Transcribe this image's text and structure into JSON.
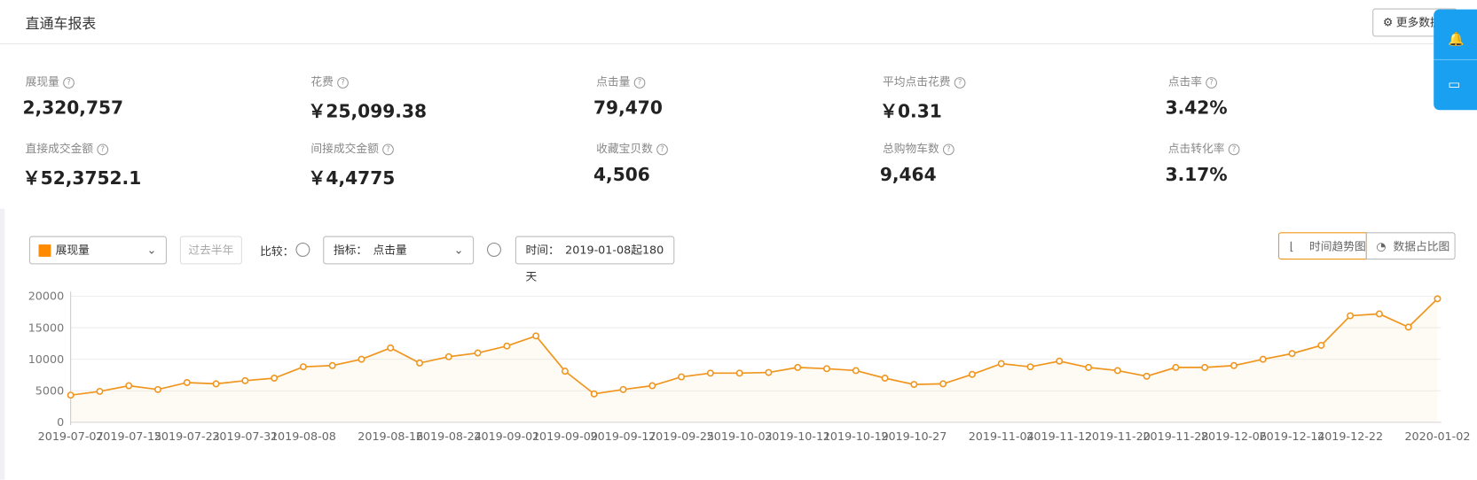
{
  "header": {
    "title": "直通车报表",
    "more_button": "更多数据"
  },
  "metrics": [
    {
      "label": "展现量",
      "value": "2,320,757"
    },
    {
      "label": "花费",
      "value": "￥25,099.38"
    },
    {
      "label": "点击量",
      "value": "79,470"
    },
    {
      "label": "平均点击花费",
      "value": "￥0.31"
    },
    {
      "label": "点击率",
      "value": "3.42%"
    },
    {
      "label": "直接成交金额",
      "value": "￥52,3752.1"
    },
    {
      "label": "间接成交金额",
      "value": "￥4,4775"
    },
    {
      "label": "收藏宝贝数",
      "value": "4,506"
    },
    {
      "label": "总购物车数",
      "value": "9,464"
    },
    {
      "label": "点击转化率",
      "value": "3.17%"
    }
  ],
  "controls": {
    "metric_select": "展现量",
    "period_button": "过去半年",
    "compare_label": "比较：",
    "indicator_label": "指标：",
    "indicator_value": "点击量",
    "time_label": "时间：",
    "time_value": "2019-01-08起180天",
    "tab_trend": "时间趋势图",
    "tab_share": "数据占比图"
  },
  "chart_data": {
    "type": "line",
    "color": "#f0961e",
    "categories": [
      "2019-07-07",
      null,
      "2019-07-15",
      null,
      "2019-07-23",
      null,
      "2019-07-31",
      null,
      "2019-08-08",
      null,
      null,
      "2019-08-16",
      null,
      "2019-08-24",
      null,
      "2019-09-01",
      null,
      "2019-09-09",
      null,
      "2019-09-17",
      null,
      "2019-09-25",
      null,
      "2019-10-03",
      null,
      "2019-10-11",
      null,
      "2019-10-19",
      null,
      "2019-10-27",
      null,
      null,
      "2019-11-04",
      null,
      "2019-11-12",
      null,
      "2019-11-20",
      null,
      "2019-11-28",
      null,
      "2019-12-06",
      null,
      "2019-12-14",
      null,
      "2019-12-22",
      null,
      null,
      "2020-01-02"
    ],
    "values": [
      4300,
      4900,
      5800,
      5200,
      6300,
      6100,
      6600,
      7000,
      8800,
      9000,
      10000,
      11800,
      9400,
      10400,
      11000,
      12100,
      13700,
      8100,
      4500,
      5200,
      5800,
      7200,
      7800,
      7800,
      7900,
      8700,
      8500,
      8200,
      7000,
      6000,
      6100,
      7600,
      9300,
      8800,
      9700,
      8700,
      8200,
      7300,
      8700,
      8700,
      9000,
      10000,
      10900,
      12200,
      16900,
      17200,
      15100,
      19600
    ],
    "ylim": [
      0,
      20000
    ],
    "yticks": [
      0,
      5000,
      10000,
      15000,
      20000
    ],
    "grid": true
  }
}
